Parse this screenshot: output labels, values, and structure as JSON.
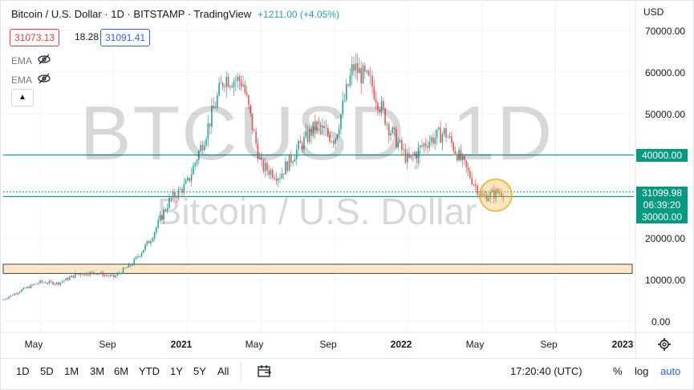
{
  "header": {
    "title": "Bitcoin / U.S. Dollar · 1D · BITSTAMP · TradingView",
    "change": "+1211.00 (+4.05%)",
    "bid": "31073.13",
    "spread": "18.28",
    "ask": "31091.41"
  },
  "indicators": [
    {
      "label": "EMA"
    },
    {
      "label": "EMA"
    }
  ],
  "watermark": {
    "symbol": "BTCUSD, 1D",
    "name": "Bitcoin / U.S. Dollar"
  },
  "price_axis": {
    "currency": "USD",
    "ticks": [
      "70000.00",
      "60000.00",
      "50000.00",
      "20000.00",
      "10000.00",
      "0.00"
    ],
    "badges": {
      "resistance": "40000.00",
      "last_price": "31099.98",
      "countdown": "06:39:20",
      "support": "30000.00"
    }
  },
  "time_axis": {
    "labels": [
      "May",
      "Sep",
      "2021",
      "May",
      "Sep",
      "2022",
      "May",
      "Sep",
      "2023"
    ]
  },
  "toolbar": {
    "timeframes": [
      "1D",
      "5D",
      "1M",
      "3M",
      "6M",
      "YTD",
      "1Y",
      "5Y",
      "All"
    ],
    "clock": "17:20:40 (UTC)",
    "percent": "%",
    "log": "log",
    "auto": "auto"
  },
  "colors": {
    "up": "#26a69a",
    "down": "#ef5350",
    "level_line": "#089981",
    "zone_fill": "#fde7c7",
    "highlight": "#f9a825"
  },
  "chart_data": {
    "type": "candlestick",
    "ylim": [
      0,
      72000
    ],
    "x_start": "2020-03",
    "x_end": "2023-01",
    "horizontal_levels": [
      40000,
      30000
    ],
    "zone": [
      11500,
      13700
    ],
    "last_price": 31099.98,
    "monthly_close": [
      {
        "t": "2020-03",
        "v": 5200
      },
      {
        "t": "2020-04",
        "v": 7500
      },
      {
        "t": "2020-05",
        "v": 9400
      },
      {
        "t": "2020-06",
        "v": 9150
      },
      {
        "t": "2020-07",
        "v": 11300
      },
      {
        "t": "2020-08",
        "v": 11700
      },
      {
        "t": "2020-09",
        "v": 10600
      },
      {
        "t": "2020-10",
        "v": 13800
      },
      {
        "t": "2020-11",
        "v": 19700
      },
      {
        "t": "2020-12",
        "v": 28900
      },
      {
        "t": "2021-01",
        "v": 33100
      },
      {
        "t": "2021-02",
        "v": 45200
      },
      {
        "t": "2021-03",
        "v": 58800
      },
      {
        "t": "2021-04",
        "v": 57700
      },
      {
        "t": "2021-05",
        "v": 37300
      },
      {
        "t": "2021-06",
        "v": 35000
      },
      {
        "t": "2021-07",
        "v": 41500
      },
      {
        "t": "2021-08",
        "v": 47100
      },
      {
        "t": "2021-09",
        "v": 43800
      },
      {
        "t": "2021-10",
        "v": 61300
      },
      {
        "t": "2021-11",
        "v": 57000
      },
      {
        "t": "2021-12",
        "v": 46200
      },
      {
        "t": "2022-01",
        "v": 38500
      },
      {
        "t": "2022-02",
        "v": 43200
      },
      {
        "t": "2022-03",
        "v": 45500
      },
      {
        "t": "2022-04",
        "v": 37700
      },
      {
        "t": "2022-05",
        "v": 29900
      },
      {
        "t": "2022-06",
        "v": 31100
      }
    ]
  }
}
